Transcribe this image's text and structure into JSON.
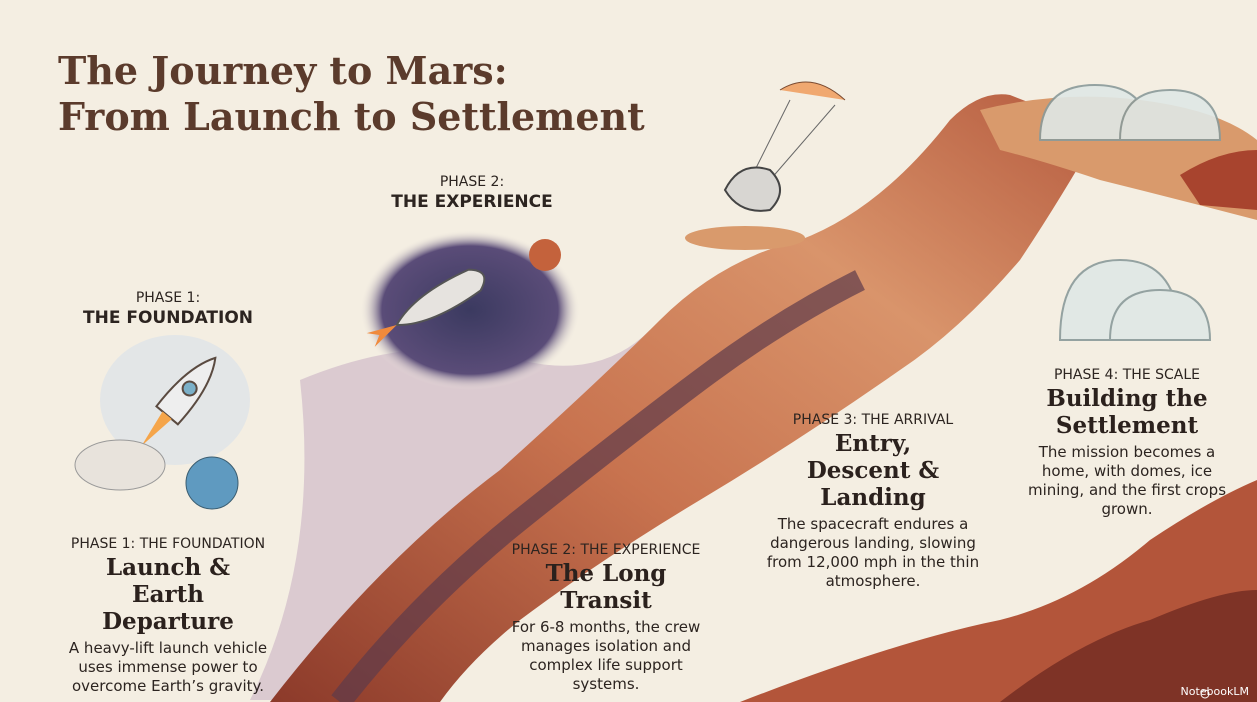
{
  "title_lines": [
    "The Journey to Mars:",
    "From Launch to Settlement"
  ],
  "illustration_labels": [
    {
      "kicker": "PHASE 1:",
      "title": "THE FOUNDATION"
    },
    {
      "kicker": "PHASE 2:",
      "title": "THE EXPERIENCE"
    }
  ],
  "phases": [
    {
      "kicker": "PHASE 1: THE FOUNDATION",
      "heading": "Launch & Earth Departure",
      "body": "A heavy-lift launch vehicle uses immense power to overcome Earth’s gravity."
    },
    {
      "kicker": "PHASE 2: THE EXPERIENCE",
      "heading": "The Long Transit",
      "body": "For 6-8 months, the crew manages isolation and complex life support systems."
    },
    {
      "kicker": "PHASE 3: THE ARRIVAL",
      "heading": "Entry, Descent & Landing",
      "body": "The spacecraft endures a dangerous landing, slowing from 12,000 mph in the thin atmosphere."
    },
    {
      "kicker": "PHASE 4: THE SCALE",
      "heading": "Building the Settlement",
      "body": "The mission becomes a home, with domes, ice mining, and the first crops grown."
    }
  ],
  "watermark": "NotebookLM"
}
